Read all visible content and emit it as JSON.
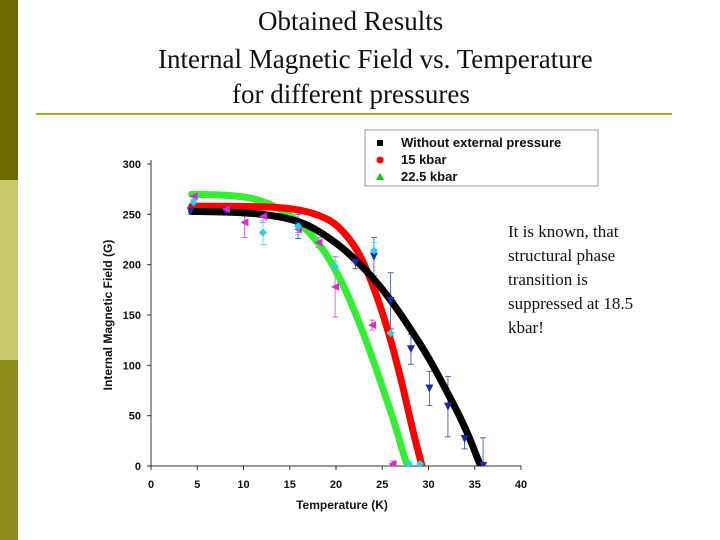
{
  "slide": {
    "title_lines": [
      "Obtained Results",
      "Internal Magnetic Field vs. Temperature",
      "for different pressures"
    ],
    "note_text": "It is known, that structural phase transition is suppressed at 18.5 kbar!",
    "accent_colors": {
      "dark_olive": "#6b6b00",
      "light_olive": "#c9c96a",
      "rule": "#a8a820"
    }
  },
  "chart_data": {
    "type": "scatter",
    "xlabel": "Temperature (K)",
    "ylabel": "Internal Magnetic Field (G)",
    "xlim": [
      0,
      40
    ],
    "ylim": [
      0,
      300
    ],
    "x_ticks": [
      "0",
      "5",
      "10",
      "15",
      "20",
      "25",
      "30",
      "35",
      "40"
    ],
    "y_ticks": [
      "0",
      "50",
      "100",
      "150",
      "200",
      "250",
      "300"
    ],
    "legend_position": "top-right",
    "series": [
      {
        "name": "Without external pressure",
        "color": "#000000",
        "marker": "square",
        "fit_curve": {
          "color": "#000000",
          "points": [
            [
              4.4,
              253
            ],
            [
              10,
              252
            ],
            [
              14,
              248
            ],
            [
              17,
              240
            ],
            [
              20,
              222
            ],
            [
              22,
              206
            ],
            [
              24,
              187
            ],
            [
              26,
              164
            ],
            [
              28,
              137
            ],
            [
              30,
              108
            ],
            [
              32,
              74
            ],
            [
              34,
              38
            ],
            [
              35.5,
              3
            ]
          ]
        },
        "points": [
          {
            "x": 4.3,
            "y": 253,
            "err": 3,
            "color": "#1a2aa8",
            "shape": "tri-down"
          },
          {
            "x": 8.1,
            "y": 253,
            "err": 3,
            "color": "#1a2aa8",
            "shape": "tri-down"
          },
          {
            "x": 15.9,
            "y": 238,
            "err": 12,
            "color": "#1a2aa8",
            "shape": "tri-down"
          },
          {
            "x": 22.1,
            "y": 202,
            "err": 6,
            "color": "#1a2aa8",
            "shape": "tri-down"
          },
          {
            "x": 24.1,
            "y": 208,
            "err": 19,
            "color": "#1a2aa8",
            "shape": "tri-down"
          },
          {
            "x": 25.9,
            "y": 164,
            "err": 28,
            "color": "#1a2aa8",
            "shape": "tri-down"
          },
          {
            "x": 28.1,
            "y": 116,
            "err": 15,
            "color": "#1a2aa8",
            "shape": "tri-down"
          },
          {
            "x": 30.1,
            "y": 77,
            "err": 17,
            "color": "#1a2aa8",
            "shape": "tri-down"
          },
          {
            "x": 32.1,
            "y": 59,
            "err": 30,
            "color": "#1a2aa8",
            "shape": "tri-down"
          },
          {
            "x": 33.9,
            "y": 27,
            "err": 10,
            "color": "#1a2aa8",
            "shape": "tri-down"
          },
          {
            "x": 35.9,
            "y": 0,
            "err": 28,
            "color": "#1a2aa8",
            "shape": "tri-down"
          }
        ]
      },
      {
        "name": "15 kbar",
        "color": "#ff0000",
        "marker": "circle",
        "fit_curve": {
          "color": "#ff0000",
          "points": [
            [
              4.4,
              258
            ],
            [
              10,
              258
            ],
            [
              14,
              257
            ],
            [
              17,
              253
            ],
            [
              19.5,
              244
            ],
            [
              21,
              231
            ],
            [
              22.5,
              212
            ],
            [
              24,
              180
            ],
            [
              25.5,
              139
            ],
            [
              27,
              88
            ],
            [
              28.3,
              35
            ],
            [
              29.3,
              0
            ]
          ]
        },
        "points": [
          {
            "x": 4.6,
            "y": 268,
            "err": 4,
            "color": "#d62cd6",
            "shape": "tri-left"
          },
          {
            "x": 8.1,
            "y": 255,
            "err": 3,
            "color": "#d62cd6",
            "shape": "tri-left"
          },
          {
            "x": 10.1,
            "y": 242,
            "err": 15,
            "color": "#d62cd6",
            "shape": "tri-left"
          },
          {
            "x": 12.1,
            "y": 248,
            "err": 6,
            "color": "#d62cd6",
            "shape": "tri-left"
          },
          {
            "x": 15.9,
            "y": 235,
            "err": 3,
            "color": "#d62cd6",
            "shape": "tri-left"
          },
          {
            "x": 18.1,
            "y": 222,
            "err": 5,
            "color": "#d62cd6",
            "shape": "tri-left"
          },
          {
            "x": 19.9,
            "y": 178,
            "err": 30,
            "color": "#d62cd6",
            "shape": "tri-left"
          },
          {
            "x": 23.9,
            "y": 140,
            "err": 5,
            "color": "#d62cd6",
            "shape": "tri-left"
          },
          {
            "x": 26.1,
            "y": 2,
            "err": 3,
            "color": "#d62cd6",
            "shape": "tri-left"
          }
        ]
      },
      {
        "name": "22.5 kbar",
        "color": "#00cc00",
        "marker": "triangle",
        "fit_curve": {
          "color": "#33ee33",
          "points": [
            [
              4.4,
              270
            ],
            [
              9,
              269
            ],
            [
              12,
              264
            ],
            [
              15,
              250
            ],
            [
              17.5,
              229
            ],
            [
              19.5,
              203
            ],
            [
              21.5,
              166
            ],
            [
              23.5,
              119
            ],
            [
              25,
              79
            ],
            [
              26.5,
              38
            ],
            [
              27.4,
              8
            ],
            [
              27.8,
              0
            ]
          ]
        },
        "points": [
          {
            "x": 4.6,
            "y": 262,
            "err": 3,
            "color": "#22d4e6",
            "shape": "diamond"
          },
          {
            "x": 12.1,
            "y": 232,
            "err": 12,
            "color": "#22d4e6",
            "shape": "diamond"
          },
          {
            "x": 15.9,
            "y": 238,
            "err": 8,
            "color": "#22d4e6",
            "shape": "diamond"
          },
          {
            "x": 19.9,
            "y": 198,
            "err": 5,
            "color": "#22d4e6",
            "shape": "diamond"
          },
          {
            "x": 24.1,
            "y": 214,
            "err": 8,
            "color": "#22d4e6",
            "shape": "diamond"
          },
          {
            "x": 25.9,
            "y": 132,
            "err": 5,
            "color": "#22d4e6",
            "shape": "diamond"
          },
          {
            "x": 27.9,
            "y": 2,
            "err": 3,
            "color": "#22d4e6",
            "shape": "diamond"
          },
          {
            "x": 29.1,
            "y": 2,
            "err": 3,
            "color": "#22d4e6",
            "shape": "diamond"
          }
        ]
      }
    ]
  }
}
